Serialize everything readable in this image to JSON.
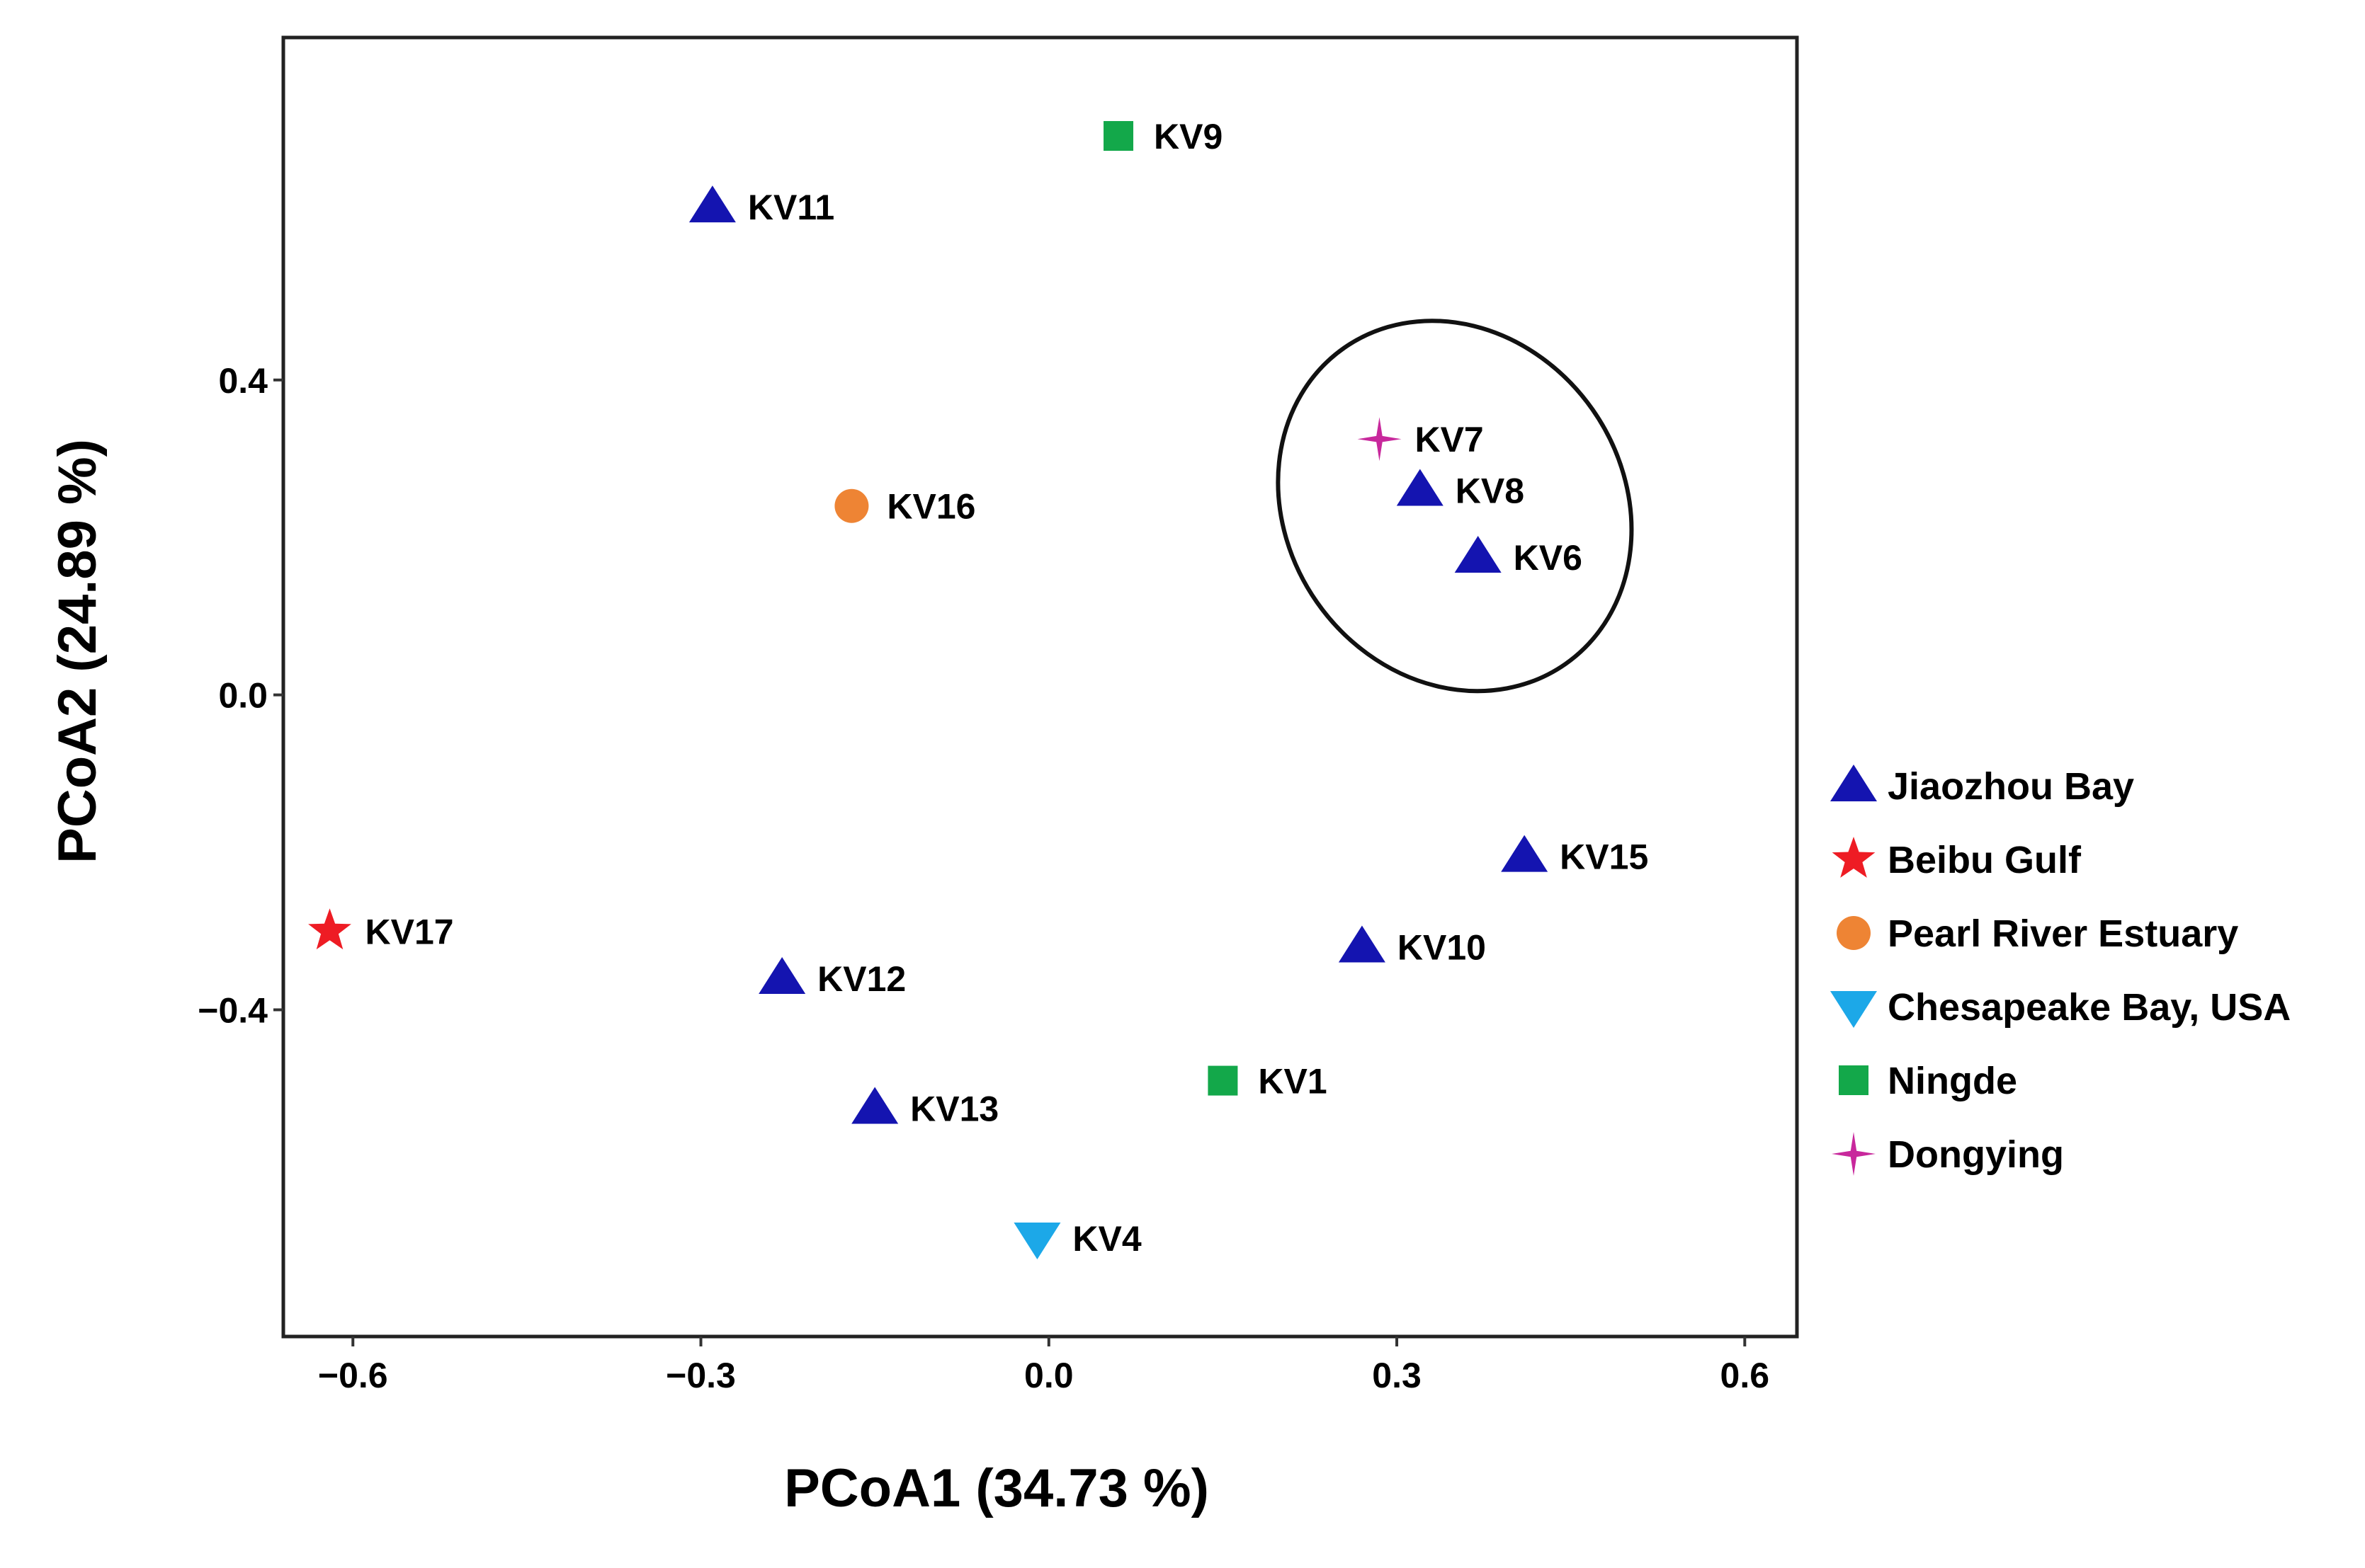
{
  "chart_data": {
    "type": "scatter",
    "title": "",
    "xlabel": "PCoA1 (34.73 %)",
    "ylabel": "PCoA2 (24.89 %)",
    "xlim": [
      -0.66,
      0.645
    ],
    "ylim": [
      -0.815,
      0.835
    ],
    "xticks": [
      -0.6,
      -0.3,
      0.0,
      0.3,
      0.6
    ],
    "xtick_labels": [
      "−0.6",
      "−0.3",
      "0.0",
      "0.3",
      "0.6"
    ],
    "yticks": [
      -0.4,
      0.0,
      0.4
    ],
    "ytick_labels": [
      "−0.4",
      "0.0",
      "0.4"
    ],
    "grid": false,
    "legend_position": "right",
    "groups": [
      {
        "name": "Jiaozhou Bay",
        "color": "#1414B0",
        "shape": "triangle-up"
      },
      {
        "name": "Beibu Gulf",
        "color": "#EE1C24",
        "shape": "star"
      },
      {
        "name": "Pearl River Estuary",
        "color": "#EE8434",
        "shape": "circle"
      },
      {
        "name": "Chesapeake Bay, USA",
        "color": "#1CA8E8",
        "shape": "triangle-down"
      },
      {
        "name": "Ningde",
        "color": "#13A84A",
        "shape": "square"
      },
      {
        "name": "Dongying",
        "color": "#C8289C",
        "shape": "sparkle"
      }
    ],
    "points": [
      {
        "label": "KV9",
        "group": "Ningde",
        "x": 0.06,
        "y": 0.71
      },
      {
        "label": "KV11",
        "group": "Jiaozhou Bay",
        "x": -0.29,
        "y": 0.62
      },
      {
        "label": "KV7",
        "group": "Dongying",
        "x": 0.285,
        "y": 0.325
      },
      {
        "label": "KV8",
        "group": "Jiaozhou Bay",
        "x": 0.32,
        "y": 0.26
      },
      {
        "label": "KV16",
        "group": "Pearl River Estuary",
        "x": -0.17,
        "y": 0.24
      },
      {
        "label": "KV6",
        "group": "Jiaozhou Bay",
        "x": 0.37,
        "y": 0.175
      },
      {
        "label": "KV15",
        "group": "Jiaozhou Bay",
        "x": 0.41,
        "y": -0.205
      },
      {
        "label": "KV17",
        "group": "Beibu Gulf",
        "x": -0.62,
        "y": -0.3
      },
      {
        "label": "KV10",
        "group": "Jiaozhou Bay",
        "x": 0.27,
        "y": -0.32
      },
      {
        "label": "KV12",
        "group": "Jiaozhou Bay",
        "x": -0.23,
        "y": -0.36
      },
      {
        "label": "KV1",
        "group": "Ningde",
        "x": 0.15,
        "y": -0.49
      },
      {
        "label": "KV13",
        "group": "Jiaozhou Bay",
        "x": -0.15,
        "y": -0.525
      },
      {
        "label": "KV4",
        "group": "Chesapeake Bay, USA",
        "x": -0.01,
        "y": -0.69
      }
    ],
    "annotations": [
      {
        "type": "ellipse",
        "encloses": [
          "KV7",
          "KV8",
          "KV6"
        ],
        "center": [
          0.35,
          0.24
        ],
        "radii": [
          0.145,
          0.245
        ],
        "rotation_deg": 35
      }
    ]
  }
}
